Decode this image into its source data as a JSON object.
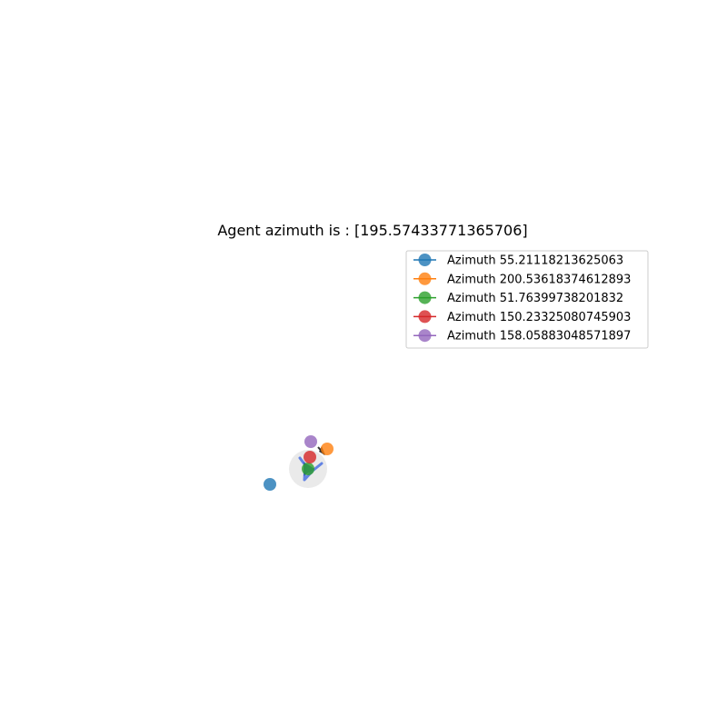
{
  "chart_data": {
    "type": "scatter",
    "title": "Agent azimuth is : [195.57433771365706]",
    "xlabel": "",
    "ylabel": "",
    "axes_visible": false,
    "grid": false,
    "legend_placement": "upper-right",
    "series": [
      {
        "name": "Azimuth 55.21118213625063",
        "color": "#1f77b4",
        "x": -42,
        "y": -17
      },
      {
        "name": "Azimuth 200.53618374612893",
        "color": "#ff7f0e",
        "x": 21,
        "y": 22
      },
      {
        "name": "Azimuth 51.76399738201832",
        "color": "#2ca02c",
        "x": 0,
        "y": 0
      },
      {
        "name": "Azimuth 150.23325080745903",
        "color": "#d62728",
        "x": 2,
        "y": 13
      },
      {
        "name": "Azimuth 158.05883048571897",
        "color": "#9467bd",
        "x": 3,
        "y": 30
      }
    ],
    "map_image": {
      "description": "",
      "colors": {
        "disc": "#e6e6e6",
        "path": "#4169e1",
        "path_dark": "#3b5bbd",
        "arrow": "#333333"
      }
    }
  }
}
